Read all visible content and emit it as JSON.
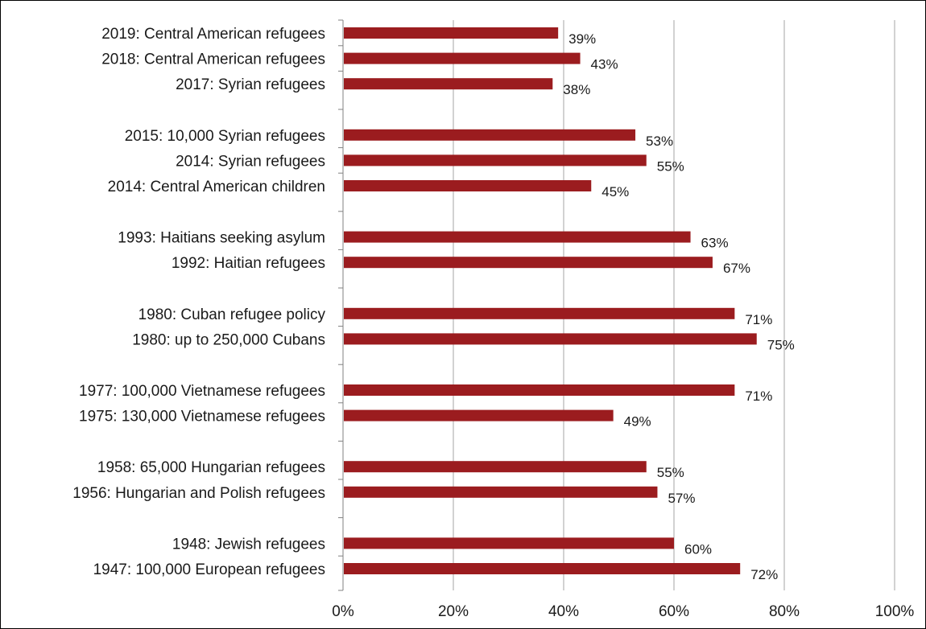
{
  "chart_data": {
    "type": "bar",
    "orientation": "horizontal",
    "categories": [
      "2019: Central American refugees",
      "2018: Central American refugees",
      "2017: Syrian refugees",
      "2015: 10,000 Syrian refugees",
      "2014: Syrian refugees",
      "2014: Central American children",
      "1993: Haitians seeking asylum",
      "1992: Haitian refugees",
      "1980: Cuban refugee policy",
      "1980: up to 250,000 Cubans",
      "1977: 100,000 Vietnamese refugees",
      "1975: 130,000 Vietnamese refugees",
      "1958: 65,000 Hungarian refugees",
      "1956:  Hungarian and Polish refugees",
      "1948: Jewish refugees",
      "1947: 100,000 European refugees"
    ],
    "values": [
      39,
      43,
      38,
      53,
      55,
      45,
      63,
      67,
      71,
      75,
      71,
      49,
      55,
      57,
      60,
      72
    ],
    "value_labels": [
      "39%",
      "43%",
      "38%",
      "53%",
      "55%",
      "45%",
      "63%",
      "67%",
      "71%",
      "75%",
      "71%",
      "49%",
      "55%",
      "57%",
      "60%",
      "72%"
    ],
    "groups": [
      3,
      3,
      2,
      2,
      2,
      2,
      2
    ],
    "xlim": [
      0,
      100
    ],
    "xticks": [
      0,
      20,
      40,
      60,
      80,
      100
    ],
    "xtick_labels": [
      "0%",
      "20%",
      "40%",
      "60%",
      "80%",
      "100%"
    ],
    "title": "",
    "xlabel": "",
    "ylabel": "",
    "grid": "vertical",
    "legend": "none",
    "bar_color": "#9b1c1f",
    "grid_color": "#a6a6a6"
  }
}
